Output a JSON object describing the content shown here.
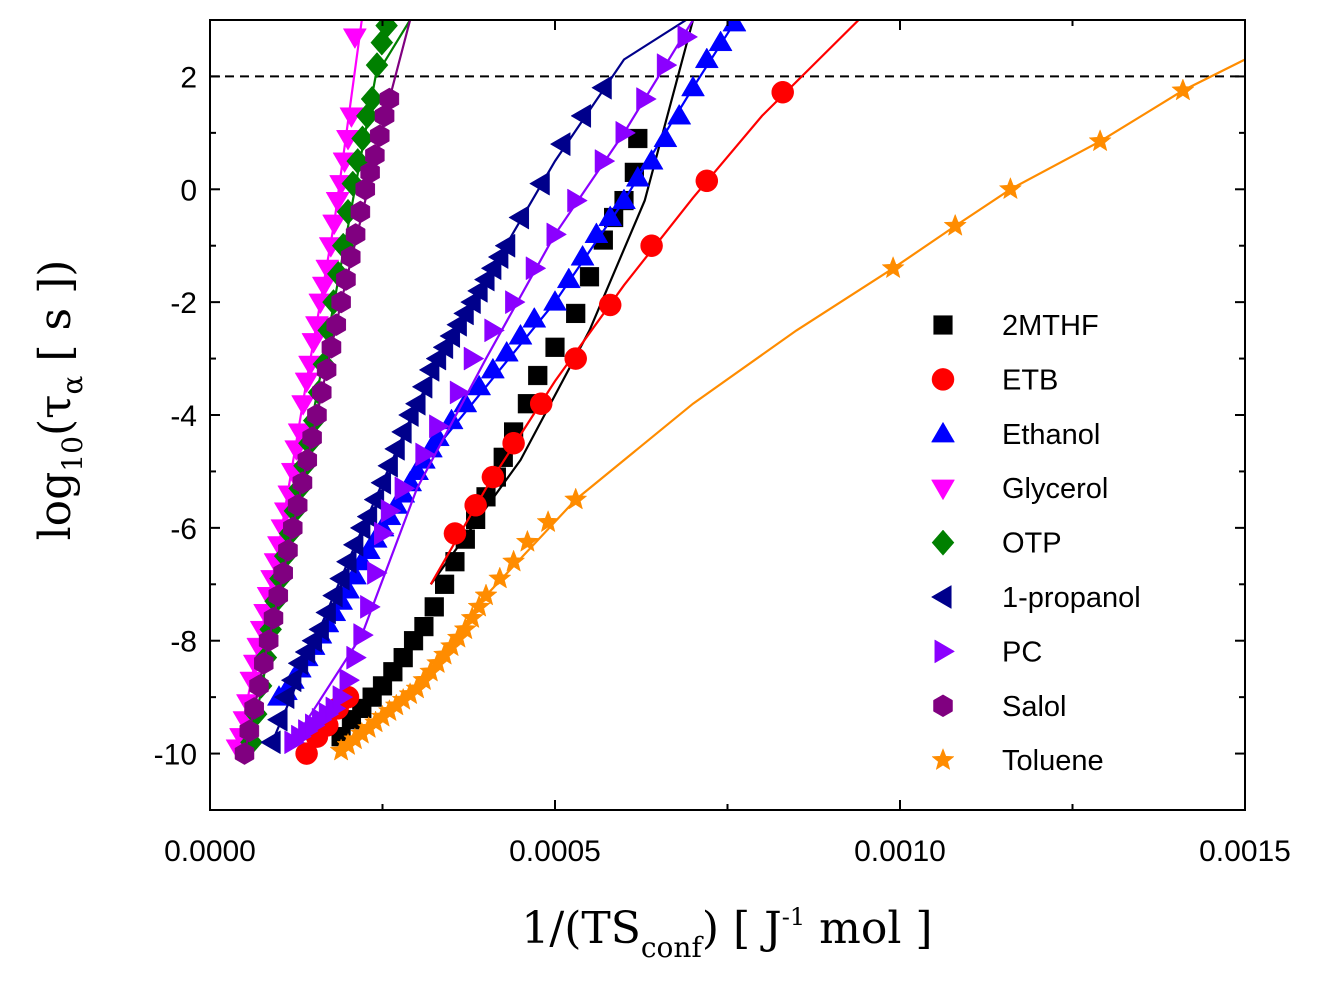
{
  "chart_data": {
    "type": "scatter",
    "xlabel": {
      "main": "1/(TS",
      "sub": "conf",
      "tail": ")  [ J",
      "sup": "-1",
      "end": " mol ]"
    },
    "ylabel": {
      "main": "log",
      "sub": "10",
      "mid": "(τ",
      "sub2": "α",
      "end": "  [ s ])"
    },
    "xlim": [
      0,
      0.0015
    ],
    "ylim": [
      -11,
      3
    ],
    "xticks": [
      0.0,
      0.0005,
      0.001,
      0.0015
    ],
    "xtick_labels": [
      "0.0000",
      "0.0005",
      "0.0010",
      "0.0015"
    ],
    "yticks": [
      -10,
      -8,
      -6,
      -4,
      -2,
      0,
      2
    ],
    "ytick_labels": [
      "-10",
      "-8",
      "-6",
      "-4",
      "-2",
      "0",
      "2"
    ],
    "reference_line": {
      "y": 2,
      "style": "dashed"
    },
    "legend_position": "right-center",
    "series": [
      {
        "name": "2MTHF",
        "color": "#000000",
        "marker": "square",
        "x": [
          0.00019,
          0.000205,
          0.00022,
          0.000235,
          0.00025,
          0.000265,
          0.00028,
          0.000295,
          0.00031,
          0.000325,
          0.00034,
          0.000355,
          0.00037,
          0.000385,
          0.0004,
          0.000415,
          0.000425,
          0.00044,
          0.00046,
          0.000475,
          0.0005,
          0.00053,
          0.00055,
          0.00057,
          0.000585,
          0.0006,
          0.000615,
          0.00062
        ],
        "y": [
          -9.7,
          -9.4,
          -9.2,
          -9.0,
          -8.8,
          -8.55,
          -8.3,
          -8.0,
          -7.75,
          -7.4,
          -7.0,
          -6.6,
          -6.2,
          -5.85,
          -5.45,
          -5.1,
          -4.75,
          -4.3,
          -3.8,
          -3.3,
          -2.8,
          -2.2,
          -1.55,
          -0.9,
          -0.5,
          -0.2,
          0.3,
          0.9
        ],
        "fit_x": [
          0.00032,
          0.00045,
          0.00055,
          0.00063,
          0.0007
        ],
        "fit_y": [
          -7.0,
          -4.8,
          -2.5,
          -0.2,
          3.0
        ]
      },
      {
        "name": "ETB",
        "color": "#ff0000",
        "marker": "circle",
        "x": [
          0.00014,
          0.000155,
          0.00017,
          0.000185,
          0.0002,
          0.000355,
          0.000385,
          0.00041,
          0.00044,
          0.00048,
          0.00053,
          0.00058,
          0.00064,
          0.00072,
          0.00083
        ],
        "y": [
          -10.0,
          -9.7,
          -9.5,
          -9.2,
          -9.0,
          -6.1,
          -5.6,
          -5.1,
          -4.5,
          -3.8,
          -3.0,
          -2.05,
          -1.0,
          0.15,
          1.72
        ],
        "fit_x": [
          0.00032,
          0.0004,
          0.0005,
          0.0006,
          0.0007,
          0.0008,
          0.00094
        ],
        "fit_y": [
          -7.0,
          -5.3,
          -3.4,
          -1.7,
          -0.15,
          1.3,
          3.0
        ]
      },
      {
        "name": "Ethanol",
        "color": "#0000ff",
        "marker": "triangle-up",
        "x": [
          0.0001,
          0.00011,
          0.00012,
          0.00013,
          0.00014,
          0.00015,
          0.00016,
          0.00017,
          0.00018,
          0.00019,
          0.0002,
          0.00021,
          0.00022,
          0.00023,
          0.00024,
          0.00025,
          0.00026,
          0.00027,
          0.00028,
          0.00029,
          0.0003,
          0.00031,
          0.00032,
          0.00033,
          0.00035,
          0.00037,
          0.00039,
          0.00041,
          0.00043,
          0.00045,
          0.00047,
          0.0005,
          0.00052,
          0.00054,
          0.00056,
          0.00058,
          0.0006,
          0.00062,
          0.00064,
          0.00066,
          0.00068,
          0.0007,
          0.00072,
          0.00074,
          0.00076
        ],
        "y": [
          -9.0,
          -8.9,
          -8.7,
          -8.5,
          -8.3,
          -8.1,
          -7.9,
          -7.7,
          -7.5,
          -7.3,
          -7.1,
          -6.85,
          -6.6,
          -6.4,
          -6.2,
          -6.0,
          -5.8,
          -5.6,
          -5.4,
          -5.2,
          -5.0,
          -4.8,
          -4.6,
          -4.4,
          -4.1,
          -3.8,
          -3.5,
          -3.2,
          -2.9,
          -2.6,
          -2.3,
          -2.0,
          -1.6,
          -1.2,
          -0.8,
          -0.5,
          -0.2,
          0.2,
          0.5,
          0.9,
          1.3,
          1.8,
          2.3,
          2.6,
          2.95
        ],
        "fit_x": [
          0.0001,
          0.0003,
          0.0005,
          0.0006,
          0.0007,
          0.00076
        ],
        "fit_y": [
          -9.0,
          -5.0,
          -2.0,
          -0.2,
          1.8,
          2.95
        ]
      },
      {
        "name": "Glycerol",
        "color": "#ff00ff",
        "marker": "triangle-down",
        "x": [
          4e-05,
          4.5e-05,
          5e-05,
          5.5e-05,
          6e-05,
          6.5e-05,
          7e-05,
          7.5e-05,
          8e-05,
          8.5e-05,
          9e-05,
          9.5e-05,
          0.0001,
          0.000105,
          0.00011,
          0.000115,
          0.00012,
          0.000125,
          0.00013,
          0.000135,
          0.00014,
          0.000145,
          0.00015,
          0.000155,
          0.00016,
          0.000165,
          0.00017,
          0.000175,
          0.00018,
          0.000185,
          0.00019,
          0.000195,
          0.0002,
          0.000205,
          0.00021
        ],
        "y": [
          -9.9,
          -9.7,
          -9.4,
          -9.1,
          -8.7,
          -8.4,
          -8.1,
          -7.8,
          -7.5,
          -7.2,
          -6.9,
          -6.6,
          -6.3,
          -6.0,
          -5.7,
          -5.4,
          -5.0,
          -4.6,
          -4.3,
          -3.8,
          -3.4,
          -3.1,
          -2.7,
          -2.4,
          -2.0,
          -1.7,
          -1.4,
          -1.0,
          -0.6,
          -0.2,
          0.1,
          0.5,
          0.9,
          1.3,
          2.7
        ],
        "fit_x": [
          4e-05,
          0.0001,
          0.00014,
          0.00018,
          0.00022
        ],
        "fit_y": [
          -9.9,
          -6.3,
          -3.4,
          -0.6,
          3.0
        ]
      },
      {
        "name": "OTP",
        "color": "#008000",
        "marker": "diamond",
        "x": [
          6e-05,
          6.7e-05,
          7.4e-05,
          8.1e-05,
          8.8e-05,
          9.5e-05,
          0.000102,
          0.000109,
          0.000116,
          0.000123,
          0.00013,
          0.000137,
          0.000144,
          0.000151,
          0.000158,
          0.000165,
          0.000172,
          0.000179,
          0.000186,
          0.000193,
          0.0002,
          0.000207,
          0.000214,
          0.000221,
          0.000228,
          0.000235,
          0.000242,
          0.000249,
          0.000256
        ],
        "y": [
          -9.8,
          -9.3,
          -8.8,
          -8.3,
          -7.8,
          -7.3,
          -6.9,
          -6.5,
          -6.1,
          -5.7,
          -5.3,
          -4.9,
          -4.5,
          -4.1,
          -3.6,
          -3.1,
          -2.5,
          -2.0,
          -1.5,
          -1.0,
          -0.4,
          0.1,
          0.5,
          0.9,
          1.3,
          1.6,
          2.2,
          2.6,
          2.9
        ],
        "fit_x": [
          6e-05,
          0.00012,
          0.00018,
          0.00024,
          0.00029
        ],
        "fit_y": [
          -9.8,
          -5.9,
          -2.0,
          2.0,
          3.0
        ]
      },
      {
        "name": "1-propanol",
        "color": "#00008b",
        "marker": "triangle-left",
        "x": [
          9e-05,
          0.0001,
          0.00011,
          0.00012,
          0.00013,
          0.00014,
          0.00015,
          0.00016,
          0.00017,
          0.00018,
          0.00019,
          0.0002,
          0.00021,
          0.00022,
          0.00023,
          0.00024,
          0.00025,
          0.00026,
          0.00027,
          0.00028,
          0.00029,
          0.0003,
          0.00031,
          0.00032,
          0.00033,
          0.00034,
          0.00035,
          0.00036,
          0.00037,
          0.00038,
          0.00039,
          0.0004,
          0.00041,
          0.00042,
          0.00043,
          0.00045,
          0.00048,
          0.00051,
          0.00054,
          0.00057
        ],
        "y": [
          -9.8,
          -9.4,
          -9.0,
          -8.7,
          -8.4,
          -8.2,
          -8.0,
          -7.8,
          -7.5,
          -7.2,
          -6.9,
          -6.6,
          -6.3,
          -6.0,
          -5.8,
          -5.5,
          -5.2,
          -4.9,
          -4.6,
          -4.3,
          -4.0,
          -3.8,
          -3.5,
          -3.2,
          -3.0,
          -2.8,
          -2.6,
          -2.4,
          -2.2,
          -2.0,
          -1.8,
          -1.6,
          -1.4,
          -1.2,
          -1.0,
          -0.5,
          0.1,
          0.8,
          1.3,
          1.8
        ],
        "fit_x": [
          9e-05,
          0.0002,
          0.0003,
          0.0004,
          0.0005,
          0.0006,
          0.00069
        ],
        "fit_y": [
          -9.8,
          -6.6,
          -3.8,
          -1.6,
          0.5,
          2.3,
          3.0
        ]
      },
      {
        "name": "PC",
        "color": "#8b00ff",
        "marker": "triangle-right",
        "x": [
          0.00012,
          0.00013,
          0.00014,
          0.00015,
          0.00016,
          0.00017,
          0.00018,
          0.00019,
          0.0002,
          0.00021,
          0.00022,
          0.00023,
          0.00024,
          0.00025,
          0.00026,
          0.00028,
          0.00031,
          0.00033,
          0.00036,
          0.00038,
          0.00041,
          0.00044,
          0.00047,
          0.0005,
          0.00053,
          0.00057,
          0.0006,
          0.00063,
          0.00066,
          0.00069
        ],
        "y": [
          -9.8,
          -9.7,
          -9.6,
          -9.5,
          -9.4,
          -9.3,
          -9.2,
          -9.0,
          -8.7,
          -8.3,
          -7.9,
          -7.4,
          -6.8,
          -6.1,
          -5.7,
          -5.3,
          -4.7,
          -4.2,
          -3.6,
          -3.0,
          -2.5,
          -2.0,
          -1.4,
          -0.8,
          -0.2,
          0.5,
          1.0,
          1.6,
          2.2,
          2.7
        ],
        "fit_x": [
          0.00012,
          0.00022,
          0.0003,
          0.0004,
          0.0005,
          0.0006,
          0.0007
        ],
        "fit_y": [
          -9.8,
          -7.9,
          -5.3,
          -3.0,
          -0.8,
          1.0,
          3.0
        ]
      },
      {
        "name": "Salol",
        "color": "#800080",
        "marker": "hexagon",
        "x": [
          5e-05,
          5.7e-05,
          6.4e-05,
          7.1e-05,
          7.8e-05,
          8.5e-05,
          9.2e-05,
          9.9e-05,
          0.000106,
          0.000113,
          0.00012,
          0.000127,
          0.000134,
          0.000141,
          0.000148,
          0.000155,
          0.000162,
          0.000169,
          0.000176,
          0.000183,
          0.00019,
          0.000197,
          0.000204,
          0.000211,
          0.000218,
          0.000225,
          0.000232,
          0.000239,
          0.000246,
          0.000253,
          0.00026
        ],
        "y": [
          -10.0,
          -9.6,
          -9.2,
          -8.8,
          -8.4,
          -8.0,
          -7.6,
          -7.2,
          -6.8,
          -6.4,
          -6.0,
          -5.6,
          -5.2,
          -4.8,
          -4.4,
          -4.0,
          -3.6,
          -3.2,
          -2.8,
          -2.4,
          -2.0,
          -1.6,
          -1.2,
          -0.8,
          -0.4,
          0.0,
          0.3,
          0.6,
          0.95,
          1.3,
          1.6
        ],
        "fit_x": [
          5e-05,
          0.00012,
          0.00019,
          0.00026,
          0.00029
        ],
        "fit_y": [
          -10.0,
          -6.0,
          -2.0,
          1.6,
          3.0
        ]
      },
      {
        "name": "Toluene",
        "color": "#ff8c00",
        "marker": "star",
        "x": [
          0.00019,
          0.0002,
          0.00021,
          0.00022,
          0.00023,
          0.00024,
          0.00025,
          0.00026,
          0.00027,
          0.00028,
          0.00029,
          0.0003,
          0.00031,
          0.00032,
          0.00033,
          0.00034,
          0.00035,
          0.00036,
          0.00037,
          0.00038,
          0.00039,
          0.0004,
          0.00042,
          0.00044,
          0.00046,
          0.00049,
          0.00053,
          0.00099,
          0.00108,
          0.00116,
          0.00129,
          0.00141
        ],
        "y": [
          -9.95,
          -9.85,
          -9.75,
          -9.65,
          -9.55,
          -9.45,
          -9.35,
          -9.25,
          -9.15,
          -9.05,
          -8.95,
          -8.85,
          -8.7,
          -8.55,
          -8.4,
          -8.25,
          -8.1,
          -7.95,
          -7.8,
          -7.6,
          -7.4,
          -7.2,
          -6.9,
          -6.6,
          -6.25,
          -5.9,
          -5.5,
          -1.4,
          -0.65,
          0.0,
          0.85,
          1.75
        ],
        "fit_x": [
          0.00019,
          0.0003,
          0.0004,
          0.00053,
          0.0007,
          0.00085,
          0.00099,
          0.00108,
          0.00116,
          0.00129,
          0.00141,
          0.0015
        ],
        "fit_y": [
          -9.95,
          -8.85,
          -7.2,
          -5.5,
          -3.8,
          -2.5,
          -1.4,
          -0.65,
          0.0,
          0.85,
          1.75,
          2.3
        ]
      }
    ]
  }
}
